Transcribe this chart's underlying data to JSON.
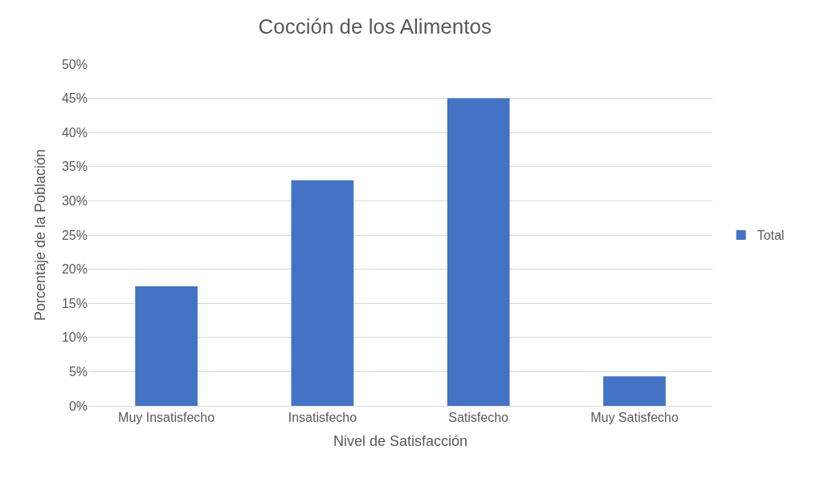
{
  "chart_data": {
    "type": "bar",
    "title": "Cocción de los Alimentos",
    "xlabel": "Nivel de Satisfacción",
    "ylabel": "Porcentaje de la Población",
    "categories": [
      "Muy Insatisfecho",
      "Insatisfecho",
      "Satisfecho",
      "Muy Satisfecho"
    ],
    "series": [
      {
        "name": "Total",
        "color": "#4472c4",
        "values": [
          17.5,
          33,
          45,
          4.3
        ]
      }
    ],
    "ylim": [
      0,
      50
    ],
    "yticks": [
      {
        "value": 0,
        "label": "0%"
      },
      {
        "value": 5,
        "label": "5%"
      },
      {
        "value": 10,
        "label": "10%"
      },
      {
        "value": 15,
        "label": "15%"
      },
      {
        "value": 20,
        "label": "20%"
      },
      {
        "value": 25,
        "label": "25%"
      },
      {
        "value": 30,
        "label": "30%"
      },
      {
        "value": 35,
        "label": "35%"
      },
      {
        "value": 40,
        "label": "40%"
      },
      {
        "value": 45,
        "label": "45%"
      },
      {
        "value": 50,
        "label": "50%"
      }
    ],
    "grid": "y",
    "legend": "right"
  }
}
